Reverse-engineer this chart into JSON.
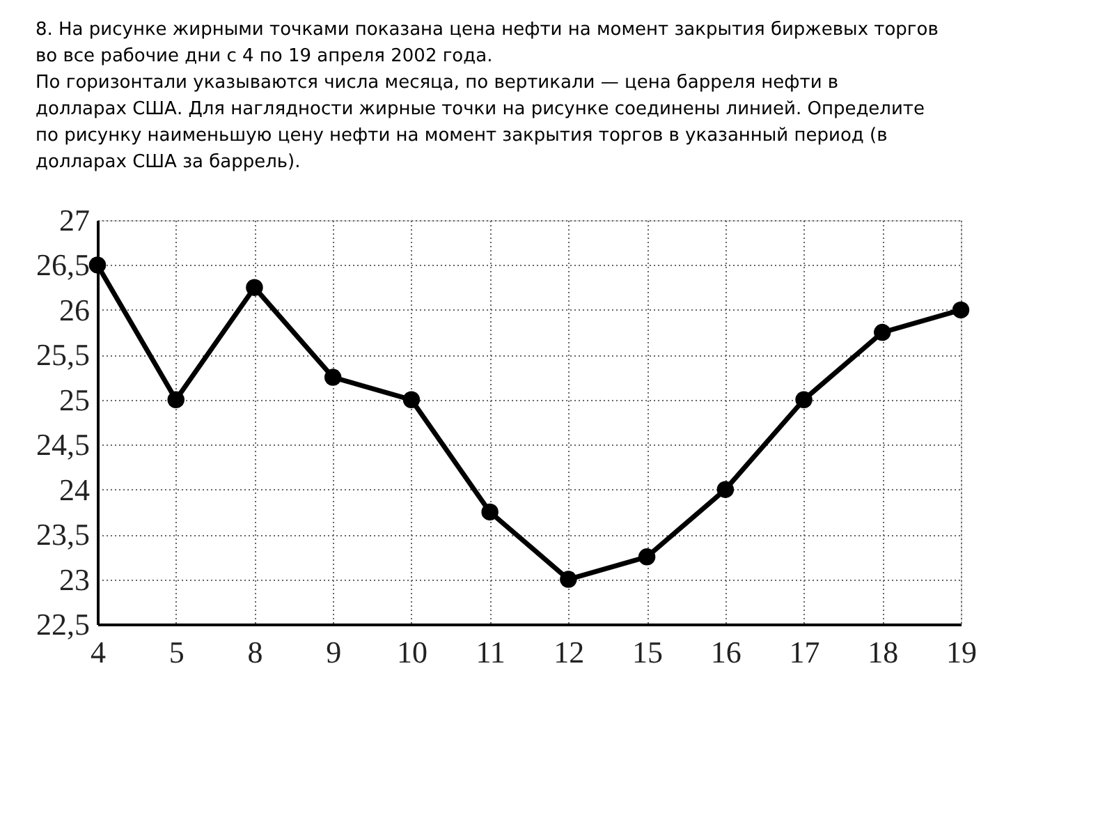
{
  "chart_data": {
    "type": "line",
    "title": "8. На рисунке жирными точками показана цена нефти на момент закрытия биржевых торгов во все рабочие дни с 4 по 19 апреля 2002 года.",
    "subtitle": "По горизонтали указываются числа месяца, по вертикали — цена барреля нефти в долларах США. Для наглядности жирные точки на рисунке соединены линией. Определите по рисунку наименьшую цену нефти на момент закрытия торгов в указанный период (в долларах США за баррель).",
    "categories": [
      "4",
      "5",
      "8",
      "9",
      "10",
      "11",
      "12",
      "15",
      "16",
      "17",
      "18",
      "19"
    ],
    "series": [
      {
        "color": "#000000",
        "values": [
          26.5,
          25,
          26.25,
          25.25,
          25,
          23.75,
          23,
          23.25,
          24,
          25,
          25.75,
          26
        ]
      }
    ],
    "ylim": [
      22.5,
      27
    ],
    "yticks": [
      {
        "value": 22.5,
        "label": "22,5"
      },
      23,
      {
        "value": 23.5,
        "label": "23,5"
      },
      24,
      {
        "value": 24.5,
        "label": "24,5"
      },
      25,
      {
        "value": 25.5,
        "label": "25,5"
      },
      26,
      {
        "value": 26.5,
        "label": "26,5"
      },
      27
    ],
    "grid": true,
    "marker": "circle",
    "line_style": "solid",
    "legend": false
  }
}
